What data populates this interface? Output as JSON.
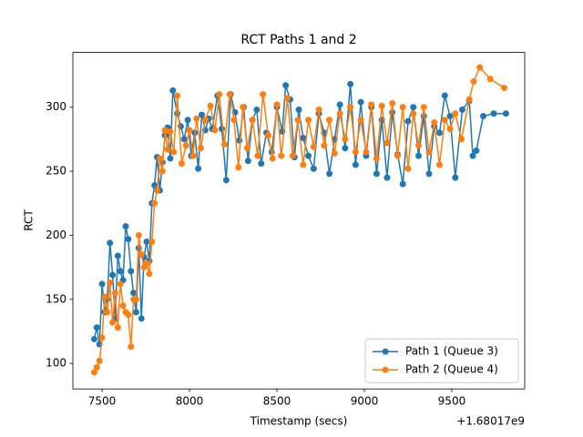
{
  "chart_data": {
    "type": "line",
    "title": "RCT Paths 1 and 2",
    "x_label": "Timestamp (secs)",
    "y_label": "RCT",
    "x_offset_label": "+1.68017e9",
    "xlim": [
      7333,
      9917
    ],
    "ylim": [
      80.1,
      342.7
    ],
    "xticks": [
      7500,
      8000,
      8500,
      9000,
      9500
    ],
    "yticks": [
      100,
      150,
      200,
      250,
      300
    ],
    "legend": "lower right",
    "series": [
      {
        "name": "Path 1 (Queue 3)",
        "color": "#1f77b4",
        "x": [
          7455,
          7470,
          7485,
          7500,
          7515,
          7530,
          7545,
          7560,
          7575,
          7590,
          7605,
          7620,
          7635,
          7650,
          7665,
          7680,
          7695,
          7710,
          7725,
          7740,
          7755,
          7770,
          7785,
          7800,
          7815,
          7830,
          7845,
          7860,
          7875,
          7890,
          7905,
          7930,
          7950,
          7970,
          7990,
          8010,
          8030,
          8050,
          8070,
          8090,
          8110,
          8130,
          8160,
          8185,
          8210,
          8235,
          8260,
          8285,
          8310,
          8335,
          8360,
          8385,
          8410,
          8440,
          8470,
          8500,
          8530,
          8550,
          8575,
          8600,
          8625,
          8650,
          8680,
          8710,
          8740,
          8770,
          8800,
          8830,
          8860,
          8890,
          8920,
          8950,
          8980,
          9010,
          9040,
          9070,
          9100,
          9130,
          9160,
          9190,
          9220,
          9250,
          9280,
          9310,
          9340,
          9370,
          9400,
          9430,
          9460,
          9490,
          9520,
          9560,
          9600,
          9620,
          9640,
          9680,
          9740,
          9810
        ],
        "values": [
          119,
          128,
          115,
          162,
          140,
          150,
          194,
          169,
          135,
          184,
          172,
          165,
          207,
          197,
          172,
          155,
          140,
          190,
          135,
          183,
          195,
          180,
          225,
          239,
          261,
          235,
          257,
          278,
          284,
          260,
          313,
          295,
          285,
          275,
          290,
          262,
          280,
          252,
          294,
          282,
          291,
          283,
          309,
          283,
          243,
          310,
          296,
          274,
          300,
          258,
          290,
          298,
          256,
          280,
          265,
          300,
          281,
          317,
          306,
          261,
          298,
          276,
          262,
          252,
          295,
          280,
          248,
          275,
          302,
          268,
          318,
          255,
          304,
          262,
          300,
          248,
          290,
          245,
          296,
          263,
          240,
          289,
          300,
          262,
          293,
          248,
          285,
          280,
          309,
          293,
          245,
          298,
          305,
          262,
          266,
          293,
          295,
          295
        ]
      },
      {
        "name": "Path 2 (Queue 4)",
        "color": "#ff7f0e",
        "x": [
          7455,
          7470,
          7485,
          7500,
          7515,
          7530,
          7545,
          7560,
          7575,
          7590,
          7605,
          7620,
          7635,
          7650,
          7665,
          7680,
          7695,
          7710,
          7725,
          7740,
          7755,
          7770,
          7785,
          7800,
          7815,
          7830,
          7845,
          7860,
          7875,
          7890,
          7910,
          7930,
          7955,
          7980,
          8000,
          8020,
          8040,
          8065,
          8090,
          8120,
          8145,
          8170,
          8200,
          8230,
          8255,
          8280,
          8305,
          8330,
          8360,
          8390,
          8420,
          8450,
          8475,
          8500,
          8525,
          8560,
          8590,
          8620,
          8650,
          8680,
          8710,
          8740,
          8770,
          8800,
          8830,
          8860,
          8890,
          8920,
          8950,
          8980,
          9010,
          9040,
          9070,
          9100,
          9130,
          9160,
          9190,
          9220,
          9250,
          9280,
          9310,
          9340,
          9370,
          9400,
          9430,
          9460,
          9490,
          9520,
          9555,
          9600,
          9625,
          9660,
          9720,
          9800
        ],
        "values": [
          93,
          97,
          102,
          120,
          152,
          140,
          163,
          132,
          155,
          128,
          162,
          145,
          140,
          138,
          113,
          150,
          150,
          200,
          185,
          175,
          178,
          170,
          195,
          225,
          235,
          260,
          250,
          282,
          267,
          281,
          265,
          309,
          256,
          270,
          282,
          262,
          291,
          268,
          290,
          301,
          282,
          310,
          271,
          310,
          290,
          253,
          300,
          268,
          290,
          262,
          310,
          278,
          260,
          302,
          262,
          307,
          262,
          290,
          255,
          290,
          269,
          298,
          270,
          290,
          264,
          295,
          275,
          300,
          265,
          290,
          265,
          302,
          260,
          301,
          272,
          303,
          262,
          300,
          252,
          295,
          270,
          300,
          265,
          288,
          255,
          290,
          283,
          295,
          275,
          306,
          320,
          331,
          322,
          315
        ]
      }
    ]
  }
}
